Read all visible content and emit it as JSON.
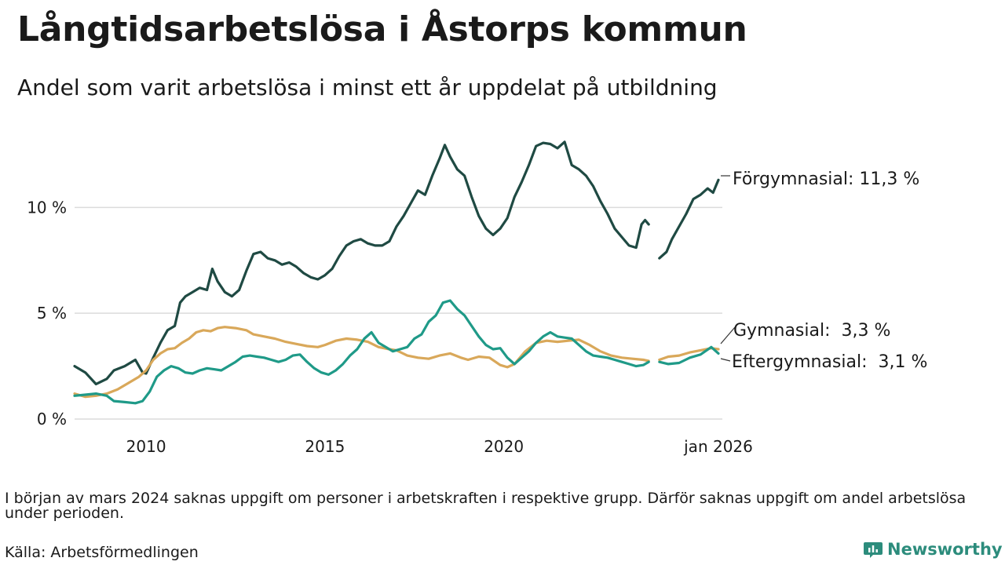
{
  "title": "Långtidsarbetslösa i Åstorps kommun",
  "subtitle": "Andel som varit arbetslösa i minst ett år uppdelat på utbildning",
  "note": "I början av mars 2024 saknas uppgift om personer i arbetskraften i respektive grupp. Därför saknas uppgift om andel arbetslösa under perioden.",
  "source": "Källa: Arbetsförmedlingen",
  "brand": {
    "name": "Newsworthy",
    "color": "#2c8c7c"
  },
  "chart_data": {
    "type": "line",
    "title": "Långtidsarbetslösa i Åstorps kommun",
    "xlabel": "",
    "ylabel": "",
    "xlim": [
      2008.0,
      2026.0
    ],
    "ylim": [
      0,
      13.5
    ],
    "grid": true,
    "y_ticks": [
      {
        "value": 0,
        "label": "0 %"
      },
      {
        "value": 5,
        "label": "5 %"
      },
      {
        "value": 10,
        "label": "10 %"
      }
    ],
    "x_ticks": [
      {
        "value": 2010,
        "label": "2010"
      },
      {
        "value": 2015,
        "label": "2015"
      },
      {
        "value": 2020,
        "label": "2020"
      },
      {
        "value": 2026,
        "label": "jan 2026"
      }
    ],
    "series": [
      {
        "name": "Förgymnasial",
        "label": "Förgymnasial: 11,3 %",
        "color": "#1f4a43",
        "values": [
          [
            2008.0,
            2.5
          ],
          [
            2008.3,
            2.2
          ],
          [
            2008.6,
            1.65
          ],
          [
            2008.9,
            1.9
          ],
          [
            2009.1,
            2.3
          ],
          [
            2009.4,
            2.5
          ],
          [
            2009.7,
            2.8
          ],
          [
            2009.9,
            2.2
          ],
          [
            2010.0,
            2.15
          ],
          [
            2010.2,
            2.9
          ],
          [
            2010.4,
            3.6
          ],
          [
            2010.6,
            4.2
          ],
          [
            2010.8,
            4.4
          ],
          [
            2010.95,
            5.5
          ],
          [
            2011.1,
            5.8
          ],
          [
            2011.3,
            6.0
          ],
          [
            2011.5,
            6.2
          ],
          [
            2011.7,
            6.1
          ],
          [
            2011.85,
            7.1
          ],
          [
            2012.0,
            6.5
          ],
          [
            2012.2,
            6.0
          ],
          [
            2012.4,
            5.8
          ],
          [
            2012.6,
            6.1
          ],
          [
            2012.8,
            7.0
          ],
          [
            2013.0,
            7.8
          ],
          [
            2013.2,
            7.9
          ],
          [
            2013.4,
            7.6
          ],
          [
            2013.6,
            7.5
          ],
          [
            2013.8,
            7.3
          ],
          [
            2014.0,
            7.4
          ],
          [
            2014.2,
            7.2
          ],
          [
            2014.4,
            6.9
          ],
          [
            2014.6,
            6.7
          ],
          [
            2014.8,
            6.6
          ],
          [
            2015.0,
            6.8
          ],
          [
            2015.2,
            7.1
          ],
          [
            2015.4,
            7.7
          ],
          [
            2015.6,
            8.2
          ],
          [
            2015.8,
            8.4
          ],
          [
            2016.0,
            8.5
          ],
          [
            2016.2,
            8.3
          ],
          [
            2016.4,
            8.2
          ],
          [
            2016.6,
            8.2
          ],
          [
            2016.8,
            8.4
          ],
          [
            2017.0,
            9.1
          ],
          [
            2017.2,
            9.6
          ],
          [
            2017.4,
            10.2
          ],
          [
            2017.6,
            10.8
          ],
          [
            2017.8,
            10.6
          ],
          [
            2018.0,
            11.5
          ],
          [
            2018.2,
            12.3
          ],
          [
            2018.35,
            12.95
          ],
          [
            2018.5,
            12.4
          ],
          [
            2018.7,
            11.8
          ],
          [
            2018.9,
            11.5
          ],
          [
            2019.1,
            10.5
          ],
          [
            2019.3,
            9.6
          ],
          [
            2019.5,
            9.0
          ],
          [
            2019.7,
            8.7
          ],
          [
            2019.9,
            9.0
          ],
          [
            2020.1,
            9.5
          ],
          [
            2020.3,
            10.5
          ],
          [
            2020.5,
            11.2
          ],
          [
            2020.7,
            12.0
          ],
          [
            2020.9,
            12.9
          ],
          [
            2021.1,
            13.05
          ],
          [
            2021.3,
            13.0
          ],
          [
            2021.5,
            12.8
          ],
          [
            2021.7,
            13.1
          ],
          [
            2021.9,
            12.0
          ],
          [
            2022.1,
            11.8
          ],
          [
            2022.3,
            11.5
          ],
          [
            2022.5,
            11.0
          ],
          [
            2022.7,
            10.3
          ],
          [
            2022.9,
            9.7
          ],
          [
            2023.1,
            9.0
          ],
          [
            2023.3,
            8.6
          ],
          [
            2023.5,
            8.2
          ],
          [
            2023.7,
            8.1
          ],
          [
            2023.85,
            9.2
          ],
          [
            2023.95,
            9.4
          ],
          [
            2024.05,
            9.2
          ],
          null,
          [
            2024.35,
            7.6
          ],
          [
            2024.55,
            7.9
          ],
          [
            2024.7,
            8.5
          ],
          [
            2024.9,
            9.1
          ],
          [
            2025.1,
            9.7
          ],
          [
            2025.3,
            10.4
          ],
          [
            2025.5,
            10.6
          ],
          [
            2025.7,
            10.9
          ],
          [
            2025.85,
            10.7
          ],
          [
            2026.0,
            11.3
          ]
        ]
      },
      {
        "name": "Gymnasial",
        "label": "Gymnasial:  3,3 %",
        "color": "#d9a85a",
        "values": [
          [
            2008.0,
            1.2
          ],
          [
            2008.3,
            1.05
          ],
          [
            2008.6,
            1.1
          ],
          [
            2008.9,
            1.2
          ],
          [
            2009.2,
            1.4
          ],
          [
            2009.5,
            1.7
          ],
          [
            2009.8,
            2.0
          ],
          [
            2010.0,
            2.3
          ],
          [
            2010.2,
            2.8
          ],
          [
            2010.4,
            3.1
          ],
          [
            2010.6,
            3.3
          ],
          [
            2010.8,
            3.35
          ],
          [
            2011.0,
            3.6
          ],
          [
            2011.2,
            3.8
          ],
          [
            2011.4,
            4.1
          ],
          [
            2011.6,
            4.2
          ],
          [
            2011.8,
            4.15
          ],
          [
            2012.0,
            4.3
          ],
          [
            2012.2,
            4.35
          ],
          [
            2012.5,
            4.3
          ],
          [
            2012.8,
            4.2
          ],
          [
            2013.0,
            4.0
          ],
          [
            2013.3,
            3.9
          ],
          [
            2013.6,
            3.8
          ],
          [
            2013.9,
            3.65
          ],
          [
            2014.2,
            3.55
          ],
          [
            2014.5,
            3.45
          ],
          [
            2014.8,
            3.4
          ],
          [
            2015.0,
            3.5
          ],
          [
            2015.3,
            3.7
          ],
          [
            2015.6,
            3.8
          ],
          [
            2015.9,
            3.75
          ],
          [
            2016.2,
            3.65
          ],
          [
            2016.5,
            3.4
          ],
          [
            2016.8,
            3.3
          ],
          [
            2017.0,
            3.25
          ],
          [
            2017.3,
            3.0
          ],
          [
            2017.6,
            2.9
          ],
          [
            2017.9,
            2.85
          ],
          [
            2018.2,
            3.0
          ],
          [
            2018.5,
            3.1
          ],
          [
            2018.8,
            2.9
          ],
          [
            2019.0,
            2.8
          ],
          [
            2019.3,
            2.95
          ],
          [
            2019.6,
            2.9
          ],
          [
            2019.9,
            2.55
          ],
          [
            2020.1,
            2.45
          ],
          [
            2020.3,
            2.6
          ],
          [
            2020.6,
            3.2
          ],
          [
            2020.9,
            3.6
          ],
          [
            2021.2,
            3.7
          ],
          [
            2021.5,
            3.65
          ],
          [
            2021.8,
            3.7
          ],
          [
            2022.1,
            3.75
          ],
          [
            2022.4,
            3.5
          ],
          [
            2022.7,
            3.2
          ],
          [
            2023.0,
            3.0
          ],
          [
            2023.3,
            2.9
          ],
          [
            2023.6,
            2.85
          ],
          [
            2023.9,
            2.8
          ],
          [
            2024.05,
            2.75
          ],
          null,
          [
            2024.35,
            2.8
          ],
          [
            2024.6,
            2.95
          ],
          [
            2024.9,
            3.0
          ],
          [
            2025.2,
            3.15
          ],
          [
            2025.5,
            3.25
          ],
          [
            2025.8,
            3.35
          ],
          [
            2026.0,
            3.3
          ]
        ]
      },
      {
        "name": "Eftergymnasial",
        "label": "Eftergymnasial:  3,1 %",
        "color": "#1f9a88",
        "values": [
          [
            2008.0,
            1.1
          ],
          [
            2008.3,
            1.15
          ],
          [
            2008.6,
            1.2
          ],
          [
            2008.9,
            1.1
          ],
          [
            2009.1,
            0.85
          ],
          [
            2009.4,
            0.8
          ],
          [
            2009.7,
            0.75
          ],
          [
            2009.9,
            0.85
          ],
          [
            2010.1,
            1.3
          ],
          [
            2010.3,
            2.0
          ],
          [
            2010.5,
            2.3
          ],
          [
            2010.7,
            2.5
          ],
          [
            2010.9,
            2.4
          ],
          [
            2011.1,
            2.2
          ],
          [
            2011.3,
            2.15
          ],
          [
            2011.5,
            2.3
          ],
          [
            2011.7,
            2.4
          ],
          [
            2011.9,
            2.35
          ],
          [
            2012.1,
            2.3
          ],
          [
            2012.3,
            2.5
          ],
          [
            2012.5,
            2.7
          ],
          [
            2012.7,
            2.95
          ],
          [
            2012.9,
            3.0
          ],
          [
            2013.1,
            2.95
          ],
          [
            2013.3,
            2.9
          ],
          [
            2013.5,
            2.8
          ],
          [
            2013.7,
            2.7
          ],
          [
            2013.9,
            2.8
          ],
          [
            2014.1,
            3.0
          ],
          [
            2014.3,
            3.05
          ],
          [
            2014.5,
            2.7
          ],
          [
            2014.7,
            2.4
          ],
          [
            2014.9,
            2.2
          ],
          [
            2015.1,
            2.1
          ],
          [
            2015.3,
            2.3
          ],
          [
            2015.5,
            2.6
          ],
          [
            2015.7,
            3.0
          ],
          [
            2015.9,
            3.3
          ],
          [
            2016.1,
            3.8
          ],
          [
            2016.3,
            4.1
          ],
          [
            2016.5,
            3.6
          ],
          [
            2016.7,
            3.4
          ],
          [
            2016.9,
            3.2
          ],
          [
            2017.1,
            3.3
          ],
          [
            2017.3,
            3.4
          ],
          [
            2017.5,
            3.8
          ],
          [
            2017.7,
            4.0
          ],
          [
            2017.9,
            4.6
          ],
          [
            2018.1,
            4.9
          ],
          [
            2018.3,
            5.5
          ],
          [
            2018.5,
            5.6
          ],
          [
            2018.7,
            5.2
          ],
          [
            2018.9,
            4.9
          ],
          [
            2019.1,
            4.4
          ],
          [
            2019.3,
            3.9
          ],
          [
            2019.5,
            3.5
          ],
          [
            2019.7,
            3.3
          ],
          [
            2019.9,
            3.35
          ],
          [
            2020.1,
            2.9
          ],
          [
            2020.3,
            2.6
          ],
          [
            2020.5,
            2.9
          ],
          [
            2020.7,
            3.2
          ],
          [
            2020.9,
            3.6
          ],
          [
            2021.1,
            3.9
          ],
          [
            2021.3,
            4.1
          ],
          [
            2021.5,
            3.9
          ],
          [
            2021.7,
            3.85
          ],
          [
            2021.9,
            3.8
          ],
          [
            2022.1,
            3.5
          ],
          [
            2022.3,
            3.2
          ],
          [
            2022.5,
            3.0
          ],
          [
            2022.7,
            2.95
          ],
          [
            2022.9,
            2.9
          ],
          [
            2023.1,
            2.8
          ],
          [
            2023.3,
            2.7
          ],
          [
            2023.5,
            2.6
          ],
          [
            2023.7,
            2.5
          ],
          [
            2023.9,
            2.55
          ],
          [
            2024.05,
            2.7
          ],
          null,
          [
            2024.35,
            2.7
          ],
          [
            2024.6,
            2.6
          ],
          [
            2024.9,
            2.65
          ],
          [
            2025.2,
            2.9
          ],
          [
            2025.5,
            3.05
          ],
          [
            2025.8,
            3.4
          ],
          [
            2026.0,
            3.1
          ]
        ]
      }
    ]
  }
}
